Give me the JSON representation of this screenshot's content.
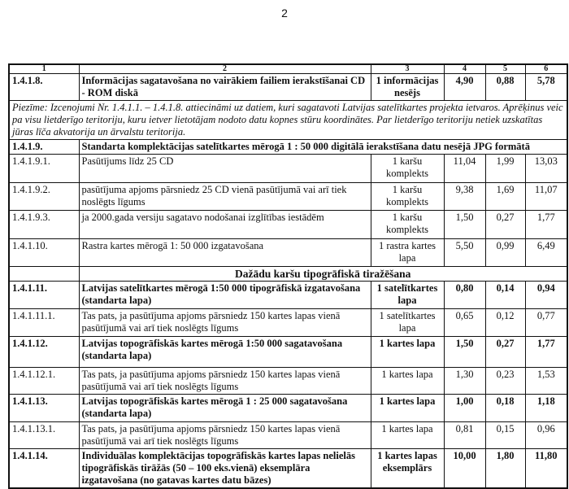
{
  "page_number": "2",
  "table": {
    "headers": [
      "1",
      "2",
      "3",
      "4",
      "5",
      "6"
    ],
    "rows": [
      {
        "type": "item",
        "bold": true,
        "h": 33,
        "code": "1.4.1.8.",
        "desc": "Informācijas sagatavošana no vairākiem failiem ierakstīšanai  CD - ROM diskā",
        "unit": "1 informācijas nesējs",
        "c4": "4,90",
        "c5": "0,88",
        "c6": "5,78"
      },
      {
        "type": "note",
        "h": 24,
        "text": "Piezīme: Izcenojumi  Nr. 1.4.1.1. – 1.4.1.8. attiecināmi uz datiem, kuri sagatavoti Latvijas satelītkartes projekta ietvaros.  Aprēķinus veic pa visu lietderīgo teritoriju, kuru ietver lietotājam nodoto datu kopnes stūru koordinātes.  Par lietderīgo teritoriju netiek uzskatītas jūras līča akvatorija un ārvalstu teritorija."
      },
      {
        "type": "span",
        "bold": true,
        "h": 12,
        "code": "1.4.1.9.",
        "desc": "Standarta komplektācijas satelītkartes mērogā 1 : 50 000 digitālā ierakstīšana datu nesējā JPG formātā"
      },
      {
        "type": "item",
        "bold": false,
        "h": 35,
        "code": "1.4.1.9.1.",
        "desc": "Pasūtījums līdz 25 CD",
        "unit": "1 karšu komplekts",
        "c4": "11,04",
        "c5": "1,99",
        "c6": "13,03"
      },
      {
        "type": "item",
        "bold": false,
        "h": 34,
        "code": "1.4.1.9.2.",
        "desc": "pasūtījuma apjoms pārsniedz 25 CD vienā pasūtījumā vai arī tiek noslēgts līgums",
        "unit": "1 karšu komplekts",
        "c4": "9,38",
        "c5": "1,69",
        "c6": "11,07"
      },
      {
        "type": "item",
        "bold": false,
        "h": 35,
        "code": "1.4.1.9.3.",
        "desc": "ja 2000.gada versiju sagatavo nodošanai izglītības iestādēm",
        "unit": "1 karšu komplekts",
        "c4": "1,50",
        "c5": "0,27",
        "c6": "1,77"
      },
      {
        "type": "item",
        "bold": false,
        "h": 34,
        "code": "1.4.1.10.",
        "desc": "Rastra kartes mērogā 1: 50 000 izgatavošana",
        "unit": "1 rastra kartes lapa",
        "c4": "5,50",
        "c5": "0,99",
        "c6": "6,49"
      },
      {
        "type": "section",
        "h": 12,
        "desc": "Dažādu karšu tipogrāfiskā tiražēšana"
      },
      {
        "type": "item",
        "bold": true,
        "h": 34,
        "code": "1.4.1.11.",
        "desc": "Latvijas satelītkartes mērogā 1:50 000 tipogrāfiskā  izgatavošana (standarta lapa)",
        "unit": "1 satelītkartes lapa",
        "c4": "0,80",
        "c5": "0,14",
        "c6": "0,94"
      },
      {
        "type": "item",
        "bold": false,
        "h": 34,
        "code": "1.4.1.11.1.",
        "desc": "Tas pats, ja pasūtījuma apjoms pārsniedz 150 kartes lapas vienā pasūtījumā vai arī tiek noslēgts līgums",
        "unit": "1 satelītkartes lapa",
        "c4": "0,65",
        "c5": "0,12",
        "c6": "0,77"
      },
      {
        "type": "item",
        "bold": true,
        "h": 38,
        "code": "1.4.1.12.",
        "desc": "Latvijas topogrāfiskās kartes mērogā 1:50 000 sagatavošana (standarta  lapa)",
        "unit": "1 kartes lapa",
        "c4": "1,50",
        "c5": "0,27",
        "c6": "1,77"
      },
      {
        "type": "item",
        "bold": false,
        "h": 28,
        "code": "1.4.1.12.1.",
        "desc": "Tas pats, ja pasūtījuma apjoms pārsniedz 150 kartes lapas vienā pasūtījumā vai arī tiek noslēgts līgums",
        "unit": "1 kartes lapa",
        "c4": "1,30",
        "c5": "0,23",
        "c6": "1,53"
      },
      {
        "type": "item",
        "bold": true,
        "h": 34,
        "code": "1.4.1.13.",
        "desc": "Latvijas topogrāfiskās kartes mērogā 1 : 25 000  sagatavošana (standarta lapa)",
        "unit": "1 kartes lapa",
        "c4": "1,00",
        "c5": "0,18",
        "c6": "1,18"
      },
      {
        "type": "item",
        "bold": false,
        "h": 29,
        "code": "1.4.1.13.1.",
        "desc": "Tas pats, ja pasūtījuma apjoms pārsniedz 150 kartes lapas vienā pasūtījumā vai arī tiek noslēgts līgums",
        "unit": "1 kartes lapa",
        "c4": "0,81",
        "c5": "0,15",
        "c6": "0,96"
      },
      {
        "type": "item",
        "bold": true,
        "h": 47,
        "code": "1.4.1.14.",
        "desc": "Individuālas komplektācijas topogrāfiskās kartes lapas nelielās tipogrāfiskās tirāžās (50 – 100 eks.vienā) eksemplāra izgatavošana (no gatavas kartes datu bāzes)",
        "unit": "1 kartes lapas eksemplārs",
        "c4": "10,00",
        "c5": "1,80",
        "c6": "11,80"
      }
    ]
  }
}
